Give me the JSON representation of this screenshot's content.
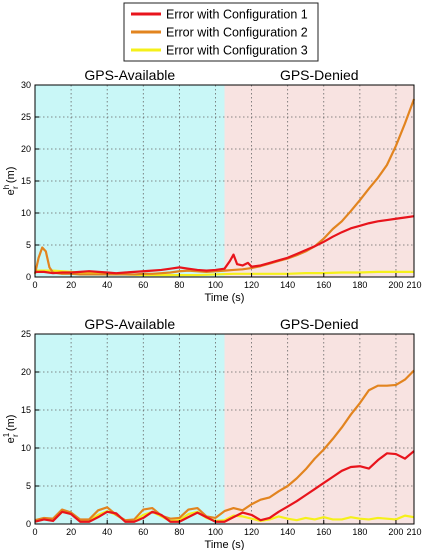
{
  "legend": {
    "placement": "top-center",
    "entries": [
      {
        "label": "Error with Configuration 1",
        "color": "#e8141c"
      },
      {
        "label": "Error with Configuration 2",
        "color": "#e2841f"
      },
      {
        "label": "Error with Configuration 3",
        "color": "#f5f01a"
      }
    ]
  },
  "colors": {
    "gps_available_region": "#c9f7f7",
    "gps_denied_region": "#f8e3e1"
  },
  "chart_data": [
    {
      "type": "line",
      "xlabel": "Time (s)",
      "ylabel_main": "e",
      "ylabel_sub": "r",
      "ylabel_sup": "h",
      "ylabel_unit": " (m)",
      "xlim": [
        0,
        210
      ],
      "ylim": [
        0,
        30
      ],
      "xticks": [
        0,
        20,
        40,
        60,
        80,
        100,
        120,
        140,
        160,
        180,
        200,
        210
      ],
      "yticks": [
        0,
        5,
        10,
        15,
        20,
        25,
        30
      ],
      "grid": true,
      "regions": [
        {
          "label": "GPS-Available",
          "x": [
            0,
            105
          ]
        },
        {
          "label": "GPS-Denied",
          "x": [
            105,
            210
          ]
        }
      ],
      "series": [
        {
          "name": "Error with Configuration 1",
          "x": [
            0,
            5,
            10,
            15,
            20,
            25,
            30,
            35,
            40,
            45,
            50,
            55,
            60,
            65,
            70,
            75,
            80,
            85,
            90,
            95,
            100,
            105,
            108,
            110,
            112,
            115,
            118,
            120,
            125,
            130,
            135,
            140,
            145,
            150,
            155,
            160,
            165,
            170,
            175,
            180,
            185,
            190,
            195,
            200,
            205,
            210
          ],
          "y": [
            0.8,
            0.8,
            0.6,
            0.7,
            0.7,
            0.8,
            0.9,
            0.8,
            0.7,
            0.6,
            0.7,
            0.8,
            0.9,
            1.0,
            1.1,
            1.3,
            1.5,
            1.3,
            1.1,
            1.0,
            1.1,
            1.3,
            2.5,
            3.5,
            2.0,
            1.8,
            2.2,
            1.6,
            1.8,
            2.2,
            2.6,
            3.0,
            3.6,
            4.2,
            4.8,
            5.5,
            6.3,
            7.0,
            7.6,
            8.0,
            8.4,
            8.7,
            8.9,
            9.1,
            9.3,
            9.5
          ]
        },
        {
          "name": "Error with Configuration 2",
          "x": [
            0,
            2,
            4,
            6,
            8,
            10,
            15,
            20,
            25,
            30,
            35,
            40,
            45,
            50,
            55,
            60,
            65,
            70,
            75,
            80,
            85,
            90,
            95,
            100,
            105,
            110,
            115,
            120,
            125,
            130,
            135,
            140,
            145,
            150,
            155,
            160,
            165,
            170,
            175,
            180,
            185,
            190,
            195,
            200,
            205,
            210
          ],
          "y": [
            0.5,
            3.0,
            4.6,
            4.0,
            1.5,
            0.7,
            0.5,
            0.5,
            0.4,
            0.4,
            0.4,
            0.4,
            0.4,
            0.4,
            0.4,
            0.5,
            0.5,
            0.6,
            0.7,
            0.9,
            1.0,
            0.9,
            0.8,
            0.9,
            1.0,
            1.1,
            1.2,
            1.4,
            1.7,
            2.1,
            2.5,
            2.9,
            3.4,
            4.0,
            4.8,
            6.0,
            7.5,
            8.7,
            10.3,
            12.0,
            13.8,
            15.5,
            17.5,
            20.5,
            24.0,
            27.8
          ]
        },
        {
          "name": "Error with Configuration 3",
          "x": [
            0,
            10,
            20,
            30,
            40,
            50,
            60,
            70,
            80,
            90,
            100,
            110,
            120,
            130,
            140,
            150,
            160,
            170,
            180,
            190,
            200,
            210
          ],
          "y": [
            1.0,
            1.0,
            0.8,
            0.6,
            0.5,
            0.4,
            0.3,
            0.3,
            0.3,
            0.3,
            0.4,
            0.5,
            0.5,
            0.5,
            0.5,
            0.6,
            0.6,
            0.7,
            0.7,
            0.8,
            0.8,
            0.8
          ]
        }
      ]
    },
    {
      "type": "line",
      "xlabel": "Time (s)",
      "ylabel_main": "e",
      "ylabel_sub": "r",
      "ylabel_sup": "1",
      "ylabel_unit": " (m)",
      "xlim": [
        0,
        210
      ],
      "ylim": [
        0,
        25
      ],
      "xticks": [
        0,
        20,
        40,
        60,
        80,
        100,
        120,
        140,
        160,
        180,
        200,
        210
      ],
      "yticks": [
        0,
        5,
        10,
        15,
        20,
        25
      ],
      "grid": true,
      "regions": [
        {
          "label": "GPS-Available",
          "x": [
            0,
            105
          ]
        },
        {
          "label": "GPS-Denied",
          "x": [
            105,
            210
          ]
        }
      ],
      "series": [
        {
          "name": "Error with Configuration 1",
          "x": [
            0,
            5,
            10,
            15,
            20,
            25,
            30,
            35,
            40,
            45,
            50,
            55,
            60,
            65,
            70,
            75,
            80,
            85,
            90,
            95,
            100,
            105,
            110,
            115,
            120,
            125,
            130,
            135,
            140,
            145,
            150,
            155,
            160,
            165,
            170,
            175,
            180,
            185,
            190,
            195,
            200,
            205,
            210
          ],
          "y": [
            0.3,
            0.6,
            0.4,
            1.6,
            1.3,
            0.3,
            0.3,
            0.9,
            1.6,
            1.4,
            0.3,
            0.3,
            0.8,
            1.6,
            1.2,
            0.3,
            0.3,
            0.9,
            1.5,
            0.9,
            0.3,
            0.3,
            0.9,
            1.5,
            1.2,
            0.5,
            0.8,
            1.6,
            2.3,
            3.0,
            3.8,
            4.6,
            5.4,
            6.2,
            7.0,
            7.5,
            7.6,
            7.3,
            8.4,
            9.3,
            9.2,
            8.6,
            9.6
          ]
        },
        {
          "name": "Error with Configuration 2",
          "x": [
            0,
            5,
            10,
            15,
            20,
            25,
            30,
            35,
            40,
            45,
            50,
            55,
            60,
            65,
            70,
            75,
            80,
            85,
            90,
            95,
            100,
            105,
            110,
            115,
            120,
            125,
            130,
            135,
            140,
            145,
            150,
            155,
            160,
            165,
            170,
            175,
            180,
            185,
            190,
            195,
            200,
            205,
            210
          ],
          "y": [
            0.5,
            0.8,
            0.7,
            1.9,
            1.5,
            0.6,
            0.6,
            1.8,
            2.2,
            1.2,
            0.5,
            0.6,
            1.9,
            2.1,
            1.1,
            0.7,
            0.8,
            1.9,
            2.1,
            1.0,
            0.8,
            1.7,
            2.1,
            1.8,
            2.6,
            3.2,
            3.5,
            4.3,
            5.0,
            6.0,
            7.2,
            8.6,
            9.8,
            11.2,
            12.7,
            14.4,
            15.9,
            17.6,
            18.2,
            18.2,
            18.3,
            19.0,
            20.2
          ]
        },
        {
          "name": "Error with Configuration 3",
          "x": [
            0,
            5,
            10,
            15,
            20,
            25,
            30,
            35,
            40,
            45,
            50,
            55,
            60,
            65,
            70,
            75,
            80,
            85,
            90,
            95,
            100,
            105,
            110,
            115,
            120,
            125,
            130,
            135,
            140,
            145,
            150,
            155,
            160,
            165,
            170,
            175,
            180,
            185,
            190,
            195,
            200,
            205,
            210
          ],
          "y": [
            0.5,
            0.7,
            0.5,
            1.6,
            1.4,
            0.4,
            0.4,
            1.2,
            1.7,
            1.2,
            0.4,
            0.4,
            1.2,
            1.6,
            1.0,
            0.4,
            0.5,
            1.3,
            1.6,
            0.8,
            0.4,
            0.5,
            1.1,
            1.0,
            0.7,
            0.4,
            0.6,
            1.0,
            0.7,
            0.5,
            0.8,
            0.6,
            0.9,
            0.6,
            0.6,
            0.9,
            0.7,
            0.6,
            0.8,
            0.7,
            0.6,
            1.1,
            0.9
          ]
        }
      ]
    }
  ]
}
